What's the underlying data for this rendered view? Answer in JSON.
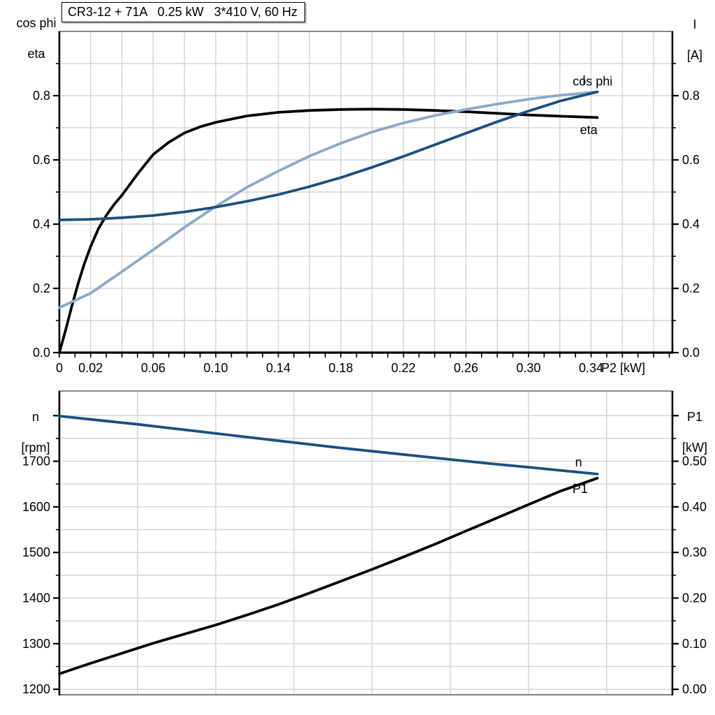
{
  "colors": {
    "dark_blue": "#1d4f80",
    "light_blue": "#8ca9c9",
    "black": "#000000",
    "grid": "#d2d6d9",
    "border": "#85898d",
    "text": "#000000",
    "background": "#ffffff"
  },
  "title_box": {
    "text": "CR3-12 + 71A   0.25 kW   3*410 V, 60 Hz"
  },
  "chart_data": [
    {
      "type": "line",
      "title": "CR3-12 + 71A   0.25 kW   3*410 V, 60 Hz",
      "x_axis": {
        "label": "P2 [kW]",
        "min": 0,
        "max": 0.392,
        "grid_step": 0.02,
        "tick_step": 0.01,
        "tick_labels": [
          [
            0,
            "0"
          ],
          [
            0.02,
            "0.02"
          ],
          [
            0.06,
            "0.06"
          ],
          [
            0.1,
            "0.10"
          ],
          [
            0.14,
            "0.14"
          ],
          [
            0.18,
            "0.18"
          ],
          [
            0.22,
            "0.22"
          ],
          [
            0.26,
            "0.26"
          ],
          [
            0.3,
            "0.30"
          ],
          [
            0.34,
            "0.34"
          ]
        ]
      },
      "y_left": {
        "label_lines": [
          "cos phi",
          "eta"
        ],
        "min": 0,
        "max": 1.0,
        "major_step": 0.2,
        "minor_step": 0.1,
        "tick_labels": [
          [
            0,
            "0.0"
          ],
          [
            0.2,
            "0.2"
          ],
          [
            0.4,
            "0.4"
          ],
          [
            0.6,
            "0.6"
          ],
          [
            0.8,
            "0.8"
          ]
        ]
      },
      "y_right": {
        "label_lines": [
          "I",
          "[A]"
        ],
        "min": 0,
        "max": 1.0,
        "major_step": 0.2,
        "minor_step": 0.1,
        "tick_labels": [
          [
            0,
            "0.0"
          ],
          [
            0.2,
            "0.2"
          ],
          [
            0.4,
            "0.4"
          ],
          [
            0.6,
            "0.6"
          ],
          [
            0.8,
            "0.8"
          ]
        ]
      },
      "legend_position": "end-of-curve",
      "grid": true,
      "series": [
        {
          "id": "eta",
          "label": "eta",
          "axis": "left",
          "color_key": "black",
          "label_anchor": {
            "x": 0.3385,
            "y": 0.6935
          },
          "points": [
            [
              0,
              0
            ],
            [
              0.004,
              0.07
            ],
            [
              0.008,
              0.145
            ],
            [
              0.012,
              0.215
            ],
            [
              0.016,
              0.277
            ],
            [
              0.02,
              0.33
            ],
            [
              0.025,
              0.386
            ],
            [
              0.03,
              0.427
            ],
            [
              0.035,
              0.461
            ],
            [
              0.04,
              0.49
            ],
            [
              0.05,
              0.556
            ],
            [
              0.06,
              0.617
            ],
            [
              0.07,
              0.655
            ],
            [
              0.08,
              0.684
            ],
            [
              0.09,
              0.703
            ],
            [
              0.1,
              0.717
            ],
            [
              0.12,
              0.737
            ],
            [
              0.14,
              0.748
            ],
            [
              0.16,
              0.754
            ],
            [
              0.18,
              0.757
            ],
            [
              0.2,
              0.758
            ],
            [
              0.22,
              0.757
            ],
            [
              0.24,
              0.754
            ],
            [
              0.26,
              0.75
            ],
            [
              0.28,
              0.745
            ],
            [
              0.3,
              0.74
            ],
            [
              0.32,
              0.736
            ],
            [
              0.344,
              0.732
            ]
          ]
        },
        {
          "id": "cos-phi",
          "label": "cos phi",
          "axis": "left",
          "color_key": "light_blue",
          "label_anchor": {
            "x": 0.341,
            "y": 0.845
          },
          "points": [
            [
              0,
              0.14
            ],
            [
              0.02,
              0.185
            ],
            [
              0.04,
              0.252
            ],
            [
              0.06,
              0.32
            ],
            [
              0.08,
              0.39
            ],
            [
              0.1,
              0.455
            ],
            [
              0.12,
              0.515
            ],
            [
              0.14,
              0.565
            ],
            [
              0.16,
              0.612
            ],
            [
              0.18,
              0.652
            ],
            [
              0.2,
              0.687
            ],
            [
              0.22,
              0.715
            ],
            [
              0.24,
              0.738
            ],
            [
              0.26,
              0.757
            ],
            [
              0.28,
              0.774
            ],
            [
              0.3,
              0.789
            ],
            [
              0.32,
              0.801
            ],
            [
              0.344,
              0.812
            ]
          ]
        },
        {
          "id": "current",
          "label": "I",
          "axis": "right",
          "color_key": "dark_blue",
          "label_anchor": {
            "x": 0.3355,
            "y": 0.848
          },
          "points": [
            [
              0,
              0.413
            ],
            [
              0.02,
              0.415
            ],
            [
              0.04,
              0.42
            ],
            [
              0.06,
              0.427
            ],
            [
              0.08,
              0.438
            ],
            [
              0.1,
              0.453
            ],
            [
              0.12,
              0.471
            ],
            [
              0.14,
              0.492
            ],
            [
              0.16,
              0.517
            ],
            [
              0.18,
              0.545
            ],
            [
              0.2,
              0.577
            ],
            [
              0.22,
              0.611
            ],
            [
              0.24,
              0.647
            ],
            [
              0.26,
              0.683
            ],
            [
              0.28,
              0.719
            ],
            [
              0.3,
              0.752
            ],
            [
              0.32,
              0.783
            ],
            [
              0.344,
              0.812
            ]
          ]
        }
      ]
    },
    {
      "type": "line",
      "title": "",
      "x_axis": {
        "label": "",
        "min": 0,
        "max": 0.392,
        "grid_step": 0.05,
        "tick_step": 0,
        "tick_labels": []
      },
      "y_left": {
        "label_lines": [
          "n",
          "[rpm]"
        ],
        "min": 1188,
        "max": 1854,
        "major_step": 100,
        "minor_step": 50,
        "tick_labels": [
          [
            1200,
            "1200"
          ],
          [
            1300,
            "1300"
          ],
          [
            1400,
            "1400"
          ],
          [
            1500,
            "1500"
          ],
          [
            1600,
            "1600"
          ],
          [
            1700,
            "1700"
          ]
        ]
      },
      "y_right": {
        "label_lines": [
          "P1",
          "[kW]"
        ],
        "min": -0.012,
        "max": 0.654,
        "major_step": 0.1,
        "minor_step": 0.05,
        "tick_labels": [
          [
            0,
            "0.00"
          ],
          [
            0.1,
            "0.10"
          ],
          [
            0.2,
            "0.20"
          ],
          [
            0.3,
            "0.30"
          ],
          [
            0.4,
            "0.40"
          ],
          [
            0.5,
            "0.50"
          ]
        ]
      },
      "legend_position": "end-of-curve",
      "grid": true,
      "series": [
        {
          "id": "speed",
          "label": "n",
          "axis": "left",
          "color_key": "dark_blue",
          "label_anchor": {
            "x": 0.332,
            "y": 1698
          },
          "points": [
            [
              0,
              1799
            ],
            [
              0.025,
              1790
            ],
            [
              0.05,
              1781
            ],
            [
              0.075,
              1771
            ],
            [
              0.1,
              1761
            ],
            [
              0.125,
              1751
            ],
            [
              0.15,
              1741
            ],
            [
              0.175,
              1731
            ],
            [
              0.2,
              1722
            ],
            [
              0.225,
              1713
            ],
            [
              0.25,
              1704
            ],
            [
              0.275,
              1695
            ],
            [
              0.3,
              1687
            ],
            [
              0.32,
              1680
            ],
            [
              0.344,
              1672
            ]
          ]
        },
        {
          "id": "p1-power",
          "label": "P1",
          "axis": "right",
          "color_key": "black",
          "label_anchor": {
            "x": 0.333,
            "y": 0.44
          },
          "points": [
            [
              0,
              0.034
            ],
            [
              0.02,
              0.057
            ],
            [
              0.04,
              0.079
            ],
            [
              0.06,
              0.101
            ],
            [
              0.08,
              0.121
            ],
            [
              0.1,
              0.141
            ],
            [
              0.12,
              0.163
            ],
            [
              0.14,
              0.186
            ],
            [
              0.16,
              0.211
            ],
            [
              0.18,
              0.237
            ],
            [
              0.2,
              0.263
            ],
            [
              0.22,
              0.29
            ],
            [
              0.24,
              0.318
            ],
            [
              0.26,
              0.347
            ],
            [
              0.28,
              0.376
            ],
            [
              0.3,
              0.405
            ],
            [
              0.32,
              0.434
            ],
            [
              0.344,
              0.463
            ]
          ]
        }
      ]
    }
  ]
}
